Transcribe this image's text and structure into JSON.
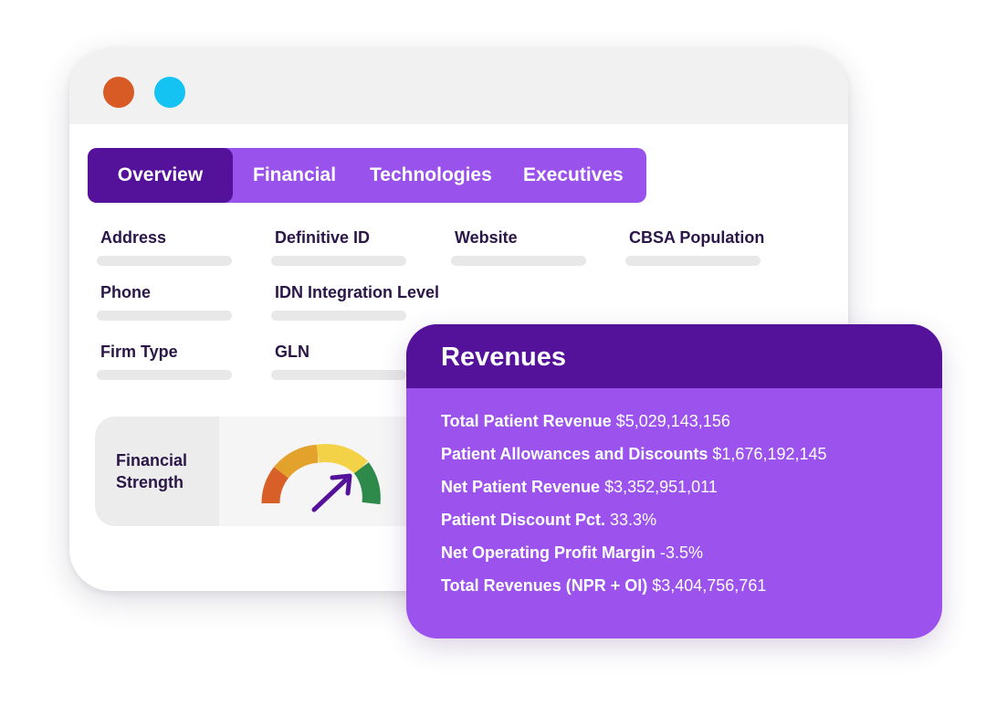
{
  "window": {
    "controls": [
      "close",
      "minimize"
    ]
  },
  "tabs": [
    {
      "label": "Overview",
      "active": true
    },
    {
      "label": "Financial",
      "active": false
    },
    {
      "label": "Technologies",
      "active": false
    },
    {
      "label": "Executives",
      "active": false
    }
  ],
  "fields": {
    "address": "Address",
    "definitive_id": "Definitive ID",
    "website": "Website",
    "cbsa_population": "CBSA Population",
    "phone": "Phone",
    "idn_integration_level": "IDN Integration Level",
    "firm_type": "Firm Type",
    "gln": "GLN"
  },
  "financial_strength": {
    "label_line1": "Financial",
    "label_line2": "Strength",
    "gauge_icon": "gauge-icon",
    "segment_colors": [
      "#d85f27",
      "#e3a22c",
      "#f3d247",
      "#2d8a4a"
    ]
  },
  "revenues": {
    "title": "Revenues",
    "rows": [
      {
        "label": "Total Patient Revenue",
        "value": "$5,029,143,156"
      },
      {
        "label": "Patient Allowances and Discounts",
        "value": "$1,676,192,145"
      },
      {
        "label": "Net Patient Revenue",
        "value": "$3,352,951,011"
      },
      {
        "label": "Patient Discount Pct.",
        "value": "33.3%"
      },
      {
        "label": "Net Operating Profit Margin",
        "value": "-3.5%"
      },
      {
        "label": "Total Revenues (NPR + OI)",
        "value": "$3,404,756,761"
      }
    ]
  },
  "colors": {
    "accent_dark": "#54119a",
    "accent": "#9c53ed",
    "dot_red": "#d85b26",
    "dot_blue": "#14c3f2"
  }
}
